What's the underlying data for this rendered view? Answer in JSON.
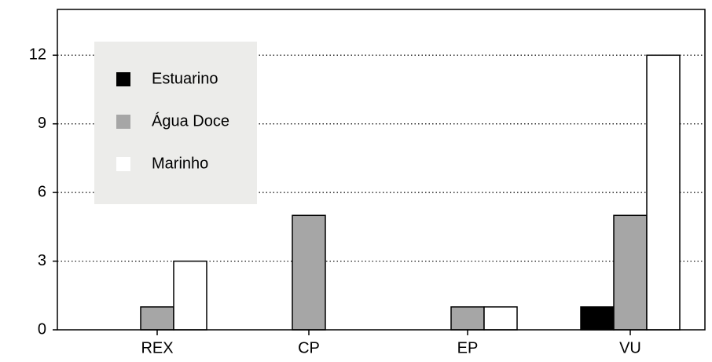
{
  "chart_data": {
    "type": "bar",
    "categories": [
      "REX",
      "CP",
      "EP",
      "VU"
    ],
    "series": [
      {
        "name": "Estuarino",
        "color": "#000000",
        "values": [
          0,
          0,
          0,
          1
        ]
      },
      {
        "name": "Água Doce",
        "color": "#a6a6a6",
        "values": [
          1,
          5,
          1,
          5
        ]
      },
      {
        "name": "Marinho",
        "color": "#ffffff",
        "values": [
          3,
          0,
          1,
          12
        ]
      }
    ],
    "ylim": [
      0,
      14
    ],
    "yticks": [
      0,
      3,
      6,
      9,
      12
    ],
    "grid": true,
    "legend": "upper left"
  }
}
